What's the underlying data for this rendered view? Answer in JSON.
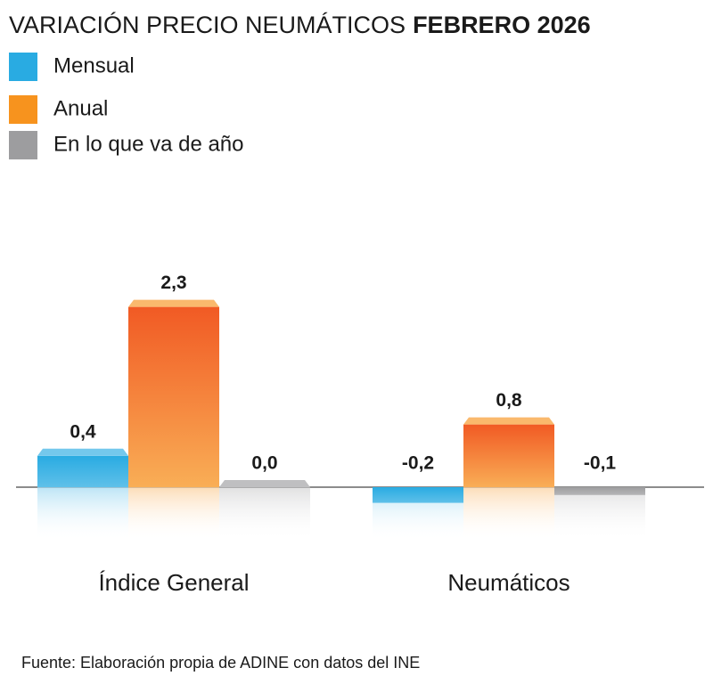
{
  "chart_data": {
    "type": "bar",
    "title": "VARIACIÓN PRECIO NEUMÁTICOS",
    "title_bold": "FEBRERO 2026",
    "categories": [
      "Índice General",
      "Neumáticos"
    ],
    "series": [
      {
        "name": "Mensual",
        "color": "#29abe2",
        "values": [
          0.4,
          -0.2
        ],
        "value_labels": [
          "0,4",
          "-0,2"
        ]
      },
      {
        "name": "Anual",
        "color": "#f7931e",
        "values": [
          2.3,
          0.8
        ],
        "value_labels": [
          "2,3",
          "0,8"
        ]
      },
      {
        "name": "En lo que va de año",
        "color": "#9d9d9f",
        "values": [
          0,
          -0.1
        ],
        "value_labels": [
          "0,0",
          "-0,1"
        ]
      }
    ],
    "source": "Fuente: Elaboración propia de ADINE con datos del INE"
  }
}
